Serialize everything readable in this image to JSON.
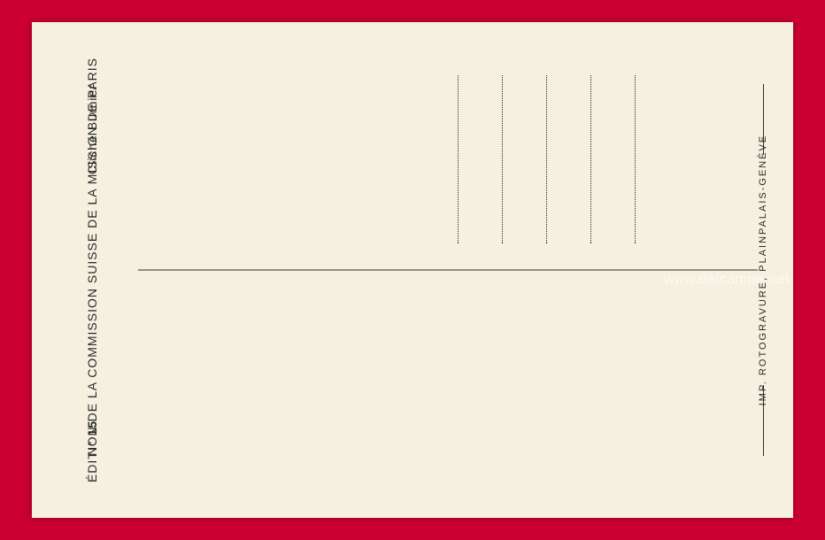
{
  "header": {
    "left_prefix": "N°",
    "left_number": "15",
    "center": "ÉDITION DE LA COMMISSION SUISSE DE LA MISSION DE PARIS",
    "right": "Cliché Burnier"
  },
  "printer": "IMP. ROTOGRAVURE, PLAINPALAIS-GENÈVE",
  "watermark": "www.delcampe.net",
  "colors": {
    "background": "#cc0033",
    "card": "#f5f0e0",
    "text": "#2a2a2a"
  }
}
